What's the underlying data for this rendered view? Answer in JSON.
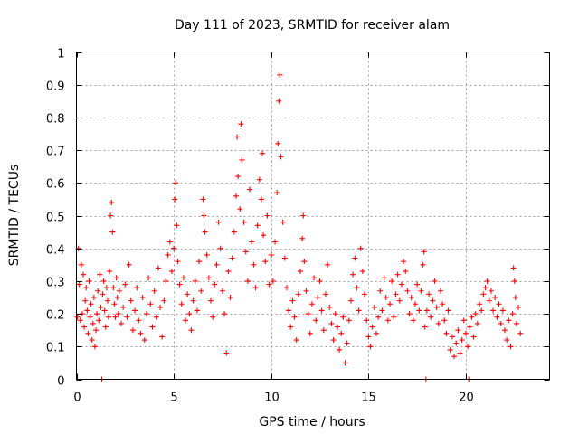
{
  "chart_data": {
    "type": "scatter",
    "title": "Day 111 of 2023, SRMTID for receiver alam",
    "xlabel": "GPS time / hours",
    "ylabel": "SRMTID / TECUs",
    "xlim": [
      0,
      24.3
    ],
    "ylim": [
      0,
      1
    ],
    "xticks": [
      0,
      5,
      10,
      15,
      20
    ],
    "xtick_labels": [
      "0",
      "5",
      "10",
      "15",
      "20"
    ],
    "yticks": [
      0,
      0.1,
      0.2,
      0.3,
      0.4,
      0.5,
      0.6,
      0.7,
      0.8,
      0.9,
      1
    ],
    "ytick_labels": [
      "0",
      "0.1",
      "0.2",
      "0.3",
      "0.4",
      "0.5",
      "0.6",
      "0.7",
      "0.8",
      "0.9",
      "1"
    ],
    "grid": true,
    "marker": "+",
    "color": "#ff0000",
    "series": [
      {
        "name": "SRMTID",
        "points": [
          [
            0.05,
            0.19
          ],
          [
            0.1,
            0.4
          ],
          [
            0.15,
            0.29
          ],
          [
            0.2,
            0.18
          ],
          [
            0.25,
            0.35
          ],
          [
            0.3,
            0.2
          ],
          [
            0.35,
            0.32
          ],
          [
            0.4,
            0.16
          ],
          [
            0.45,
            0.24
          ],
          [
            0.5,
            0.28
          ],
          [
            0.55,
            0.21
          ],
          [
            0.6,
            0.14
          ],
          [
            0.65,
            0.3
          ],
          [
            0.7,
            0.19
          ],
          [
            0.75,
            0.23
          ],
          [
            0.8,
            0.12
          ],
          [
            0.85,
            0.17
          ],
          [
            0.9,
            0.25
          ],
          [
            0.95,
            0.1
          ],
          [
            1.0,
            0.15
          ],
          [
            1.05,
            0.2
          ],
          [
            1.1,
            0.27
          ],
          [
            1.15,
            0.18
          ],
          [
            1.2,
            0.32
          ],
          [
            1.25,
            0.22
          ],
          [
            1.3,
            0.0
          ],
          [
            1.35,
            0.26
          ],
          [
            1.4,
            0.3
          ],
          [
            1.45,
            0.21
          ],
          [
            1.5,
            0.16
          ],
          [
            1.55,
            0.28
          ],
          [
            1.6,
            0.24
          ],
          [
            1.65,
            0.19
          ],
          [
            1.7,
            0.33
          ],
          [
            1.75,
            0.5
          ],
          [
            1.8,
            0.54
          ],
          [
            1.85,
            0.45
          ],
          [
            1.9,
            0.28
          ],
          [
            1.95,
            0.23
          ],
          [
            2.0,
            0.19
          ],
          [
            2.05,
            0.31
          ],
          [
            2.1,
            0.25
          ],
          [
            2.15,
            0.2
          ],
          [
            2.2,
            0.27
          ],
          [
            2.3,
            0.17
          ],
          [
            2.4,
            0.22
          ],
          [
            2.5,
            0.29
          ],
          [
            2.6,
            0.19
          ],
          [
            2.7,
            0.35
          ],
          [
            2.8,
            0.24
          ],
          [
            2.9,
            0.15
          ],
          [
            3.0,
            0.21
          ],
          [
            3.1,
            0.28
          ],
          [
            3.2,
            0.18
          ],
          [
            3.3,
            0.14
          ],
          [
            3.4,
            0.25
          ],
          [
            3.5,
            0.12
          ],
          [
            3.6,
            0.2
          ],
          [
            3.7,
            0.31
          ],
          [
            3.8,
            0.23
          ],
          [
            3.9,
            0.16
          ],
          [
            4.0,
            0.27
          ],
          [
            4.1,
            0.19
          ],
          [
            4.2,
            0.34
          ],
          [
            4.3,
            0.22
          ],
          [
            4.4,
            0.13
          ],
          [
            4.5,
            0.24
          ],
          [
            4.6,
            0.3
          ],
          [
            4.7,
            0.38
          ],
          [
            4.8,
            0.42
          ],
          [
            4.9,
            0.33
          ],
          [
            5.0,
            0.4
          ],
          [
            5.05,
            0.55
          ],
          [
            5.1,
            0.6
          ],
          [
            5.15,
            0.47
          ],
          [
            5.2,
            0.36
          ],
          [
            5.3,
            0.29
          ],
          [
            5.4,
            0.23
          ],
          [
            5.5,
            0.31
          ],
          [
            5.6,
            0.18
          ],
          [
            5.7,
            0.26
          ],
          [
            5.8,
            0.2
          ],
          [
            5.9,
            0.15
          ],
          [
            6.0,
            0.24
          ],
          [
            6.1,
            0.3
          ],
          [
            6.2,
            0.21
          ],
          [
            6.3,
            0.36
          ],
          [
            6.4,
            0.27
          ],
          [
            6.5,
            0.55
          ],
          [
            6.55,
            0.5
          ],
          [
            6.6,
            0.45
          ],
          [
            6.7,
            0.38
          ],
          [
            6.8,
            0.31
          ],
          [
            6.9,
            0.24
          ],
          [
            7.0,
            0.19
          ],
          [
            7.1,
            0.29
          ],
          [
            7.2,
            0.35
          ],
          [
            7.3,
            0.48
          ],
          [
            7.4,
            0.4
          ],
          [
            7.5,
            0.27
          ],
          [
            7.6,
            0.2
          ],
          [
            7.7,
            0.08
          ],
          [
            7.8,
            0.33
          ],
          [
            7.9,
            0.25
          ],
          [
            8.0,
            0.37
          ],
          [
            8.1,
            0.45
          ],
          [
            8.2,
            0.56
          ],
          [
            8.25,
            0.74
          ],
          [
            8.3,
            0.62
          ],
          [
            8.4,
            0.52
          ],
          [
            8.45,
            0.78
          ],
          [
            8.5,
            0.67
          ],
          [
            8.6,
            0.48
          ],
          [
            8.7,
            0.39
          ],
          [
            8.8,
            0.3
          ],
          [
            8.9,
            0.58
          ],
          [
            9.0,
            0.42
          ],
          [
            9.1,
            0.35
          ],
          [
            9.2,
            0.28
          ],
          [
            9.3,
            0.47
          ],
          [
            9.4,
            0.61
          ],
          [
            9.5,
            0.55
          ],
          [
            9.55,
            0.69
          ],
          [
            9.6,
            0.44
          ],
          [
            9.7,
            0.36
          ],
          [
            9.8,
            0.5
          ],
          [
            9.9,
            0.29
          ],
          [
            10.0,
            0.38
          ],
          [
            10.1,
            0.3
          ],
          [
            10.2,
            0.42
          ],
          [
            10.3,
            0.57
          ],
          [
            10.35,
            0.72
          ],
          [
            10.4,
            0.85
          ],
          [
            10.45,
            0.93
          ],
          [
            10.5,
            0.68
          ],
          [
            10.6,
            0.48
          ],
          [
            10.7,
            0.37
          ],
          [
            10.8,
            0.28
          ],
          [
            10.9,
            0.21
          ],
          [
            11.0,
            0.16
          ],
          [
            11.1,
            0.24
          ],
          [
            11.2,
            0.19
          ],
          [
            11.3,
            0.12
          ],
          [
            11.4,
            0.26
          ],
          [
            11.5,
            0.33
          ],
          [
            11.6,
            0.43
          ],
          [
            11.65,
            0.5
          ],
          [
            11.7,
            0.36
          ],
          [
            11.8,
            0.27
          ],
          [
            11.9,
            0.2
          ],
          [
            12.0,
            0.14
          ],
          [
            12.1,
            0.23
          ],
          [
            12.2,
            0.31
          ],
          [
            12.3,
            0.18
          ],
          [
            12.4,
            0.25
          ],
          [
            12.5,
            0.3
          ],
          [
            12.6,
            0.21
          ],
          [
            12.7,
            0.15
          ],
          [
            12.8,
            0.26
          ],
          [
            12.9,
            0.35
          ],
          [
            13.0,
            0.22
          ],
          [
            13.1,
            0.17
          ],
          [
            13.2,
            0.12
          ],
          [
            13.3,
            0.2
          ],
          [
            13.4,
            0.16
          ],
          [
            13.5,
            0.09
          ],
          [
            13.6,
            0.14
          ],
          [
            13.7,
            0.19
          ],
          [
            13.8,
            0.05
          ],
          [
            13.9,
            0.11
          ],
          [
            14.0,
            0.18
          ],
          [
            14.1,
            0.24
          ],
          [
            14.2,
            0.32
          ],
          [
            14.3,
            0.37
          ],
          [
            14.4,
            0.28
          ],
          [
            14.5,
            0.21
          ],
          [
            14.6,
            0.4
          ],
          [
            14.7,
            0.33
          ],
          [
            14.8,
            0.26
          ],
          [
            14.9,
            0.18
          ],
          [
            15.0,
            0.13
          ],
          [
            15.1,
            0.1
          ],
          [
            15.2,
            0.16
          ],
          [
            15.3,
            0.22
          ],
          [
            15.4,
            0.14
          ],
          [
            15.5,
            0.19
          ],
          [
            15.6,
            0.27
          ],
          [
            15.7,
            0.21
          ],
          [
            15.8,
            0.31
          ],
          [
            15.9,
            0.25
          ],
          [
            16.0,
            0.18
          ],
          [
            16.1,
            0.23
          ],
          [
            16.2,
            0.3
          ],
          [
            16.3,
            0.19
          ],
          [
            16.4,
            0.26
          ],
          [
            16.5,
            0.32
          ],
          [
            16.6,
            0.24
          ],
          [
            16.7,
            0.29
          ],
          [
            16.8,
            0.36
          ],
          [
            16.9,
            0.33
          ],
          [
            17.0,
            0.27
          ],
          [
            17.1,
            0.2
          ],
          [
            17.2,
            0.25
          ],
          [
            17.3,
            0.18
          ],
          [
            17.4,
            0.23
          ],
          [
            17.5,
            0.29
          ],
          [
            17.6,
            0.21
          ],
          [
            17.7,
            0.27
          ],
          [
            17.8,
            0.35
          ],
          [
            17.85,
            0.39
          ],
          [
            17.9,
            0.16
          ],
          [
            17.95,
            0.0
          ],
          [
            18.0,
            0.21
          ],
          [
            18.1,
            0.26
          ],
          [
            18.2,
            0.19
          ],
          [
            18.3,
            0.24
          ],
          [
            18.4,
            0.3
          ],
          [
            18.5,
            0.22
          ],
          [
            18.6,
            0.17
          ],
          [
            18.7,
            0.27
          ],
          [
            18.8,
            0.23
          ],
          [
            18.9,
            0.18
          ],
          [
            19.0,
            0.14
          ],
          [
            19.1,
            0.21
          ],
          [
            19.2,
            0.09
          ],
          [
            19.3,
            0.13
          ],
          [
            19.4,
            0.07
          ],
          [
            19.5,
            0.11
          ],
          [
            19.6,
            0.15
          ],
          [
            19.7,
            0.08
          ],
          [
            19.8,
            0.12
          ],
          [
            19.9,
            0.18
          ],
          [
            20.0,
            0.14
          ],
          [
            20.1,
            0.1
          ],
          [
            20.15,
            0.0
          ],
          [
            20.2,
            0.16
          ],
          [
            20.3,
            0.19
          ],
          [
            20.4,
            0.13
          ],
          [
            20.5,
            0.2
          ],
          [
            20.6,
            0.17
          ],
          [
            20.7,
            0.23
          ],
          [
            20.8,
            0.21
          ],
          [
            20.9,
            0.26
          ],
          [
            21.0,
            0.28
          ],
          [
            21.1,
            0.3
          ],
          [
            21.2,
            0.24
          ],
          [
            21.3,
            0.27
          ],
          [
            21.4,
            0.21
          ],
          [
            21.5,
            0.25
          ],
          [
            21.6,
            0.19
          ],
          [
            21.7,
            0.23
          ],
          [
            21.8,
            0.17
          ],
          [
            21.9,
            0.21
          ],
          [
            22.0,
            0.15
          ],
          [
            22.1,
            0.12
          ],
          [
            22.2,
            0.18
          ],
          [
            22.3,
            0.1
          ],
          [
            22.4,
            0.2
          ],
          [
            22.45,
            0.34
          ],
          [
            22.5,
            0.3
          ],
          [
            22.55,
            0.25
          ],
          [
            22.6,
            0.17
          ],
          [
            22.7,
            0.22
          ],
          [
            22.8,
            0.14
          ]
        ]
      }
    ]
  }
}
